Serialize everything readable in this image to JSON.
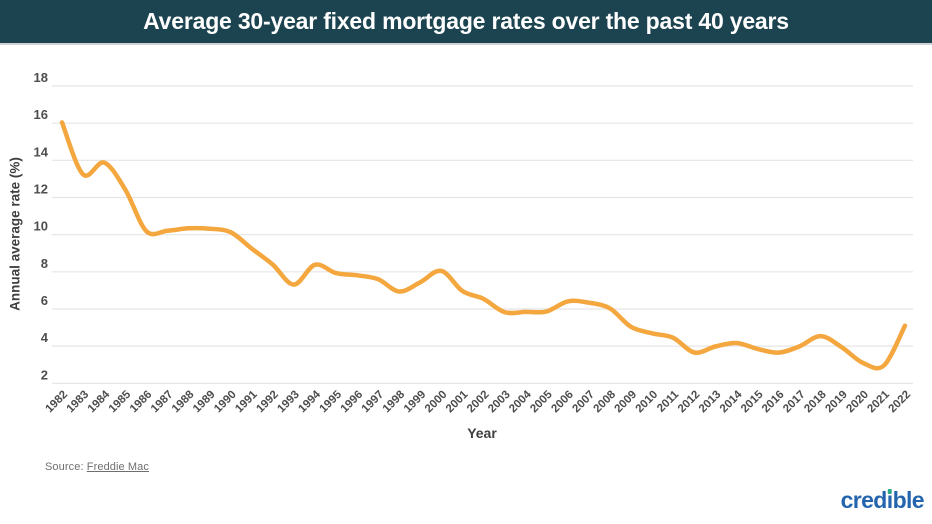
{
  "header": {
    "title": "Average 30-year fixed mortgage rates over the past 40 years",
    "background_color": "#1c4450",
    "text_color": "#ffffff"
  },
  "chart_data": {
    "type": "line",
    "title": "Average 30-year fixed mortgage rates over the past 40 years",
    "xlabel": "Year",
    "ylabel": "Annual average rate (%)",
    "x": [
      1982,
      1983,
      1984,
      1985,
      1986,
      1987,
      1988,
      1989,
      1990,
      1991,
      1992,
      1993,
      1994,
      1995,
      1996,
      1997,
      1998,
      1999,
      2000,
      2001,
      2002,
      2003,
      2004,
      2005,
      2006,
      2007,
      2008,
      2009,
      2010,
      2011,
      2012,
      2013,
      2014,
      2015,
      2016,
      2017,
      2018,
      2019,
      2020,
      2021,
      2022
    ],
    "series": [
      {
        "name": "Annual average 30-year fixed mortgage rate (%)",
        "color": "#f3a73e",
        "values": [
          16.04,
          13.24,
          13.88,
          12.43,
          10.19,
          10.21,
          10.34,
          10.32,
          10.13,
          9.25,
          8.39,
          7.31,
          8.38,
          7.93,
          7.81,
          7.6,
          6.94,
          7.44,
          8.05,
          6.97,
          6.54,
          5.83,
          5.84,
          5.87,
          6.41,
          6.34,
          6.03,
          5.04,
          4.69,
          4.45,
          3.66,
          3.98,
          4.17,
          3.85,
          3.65,
          3.99,
          4.54,
          3.94,
          3.1,
          2.96,
          5.1
        ]
      }
    ],
    "ylim": [
      2,
      18
    ],
    "yticks": [
      2,
      4,
      6,
      8,
      10,
      12,
      14,
      16,
      18
    ],
    "grid": true,
    "gridline_color": "#e5e5e5",
    "tick_label_color": "#4d4d4d",
    "legend_position": "none"
  },
  "source": {
    "label": "Source:",
    "link_text": "Freddie Mac"
  },
  "logo": {
    "text": "credible",
    "color": "#2465ae",
    "dot_color": "#2ba984"
  }
}
